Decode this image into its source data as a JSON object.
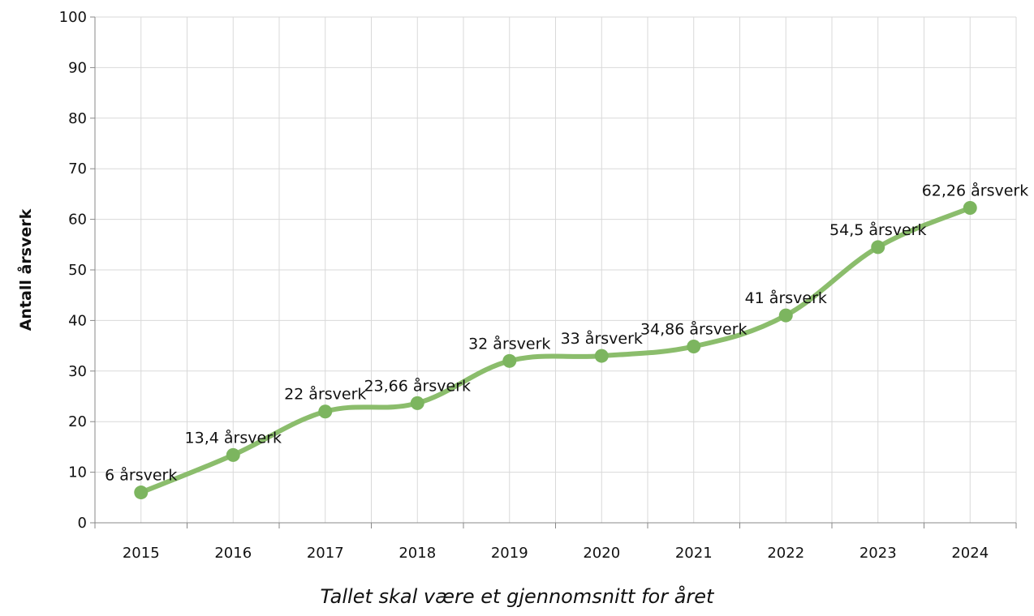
{
  "chart_data": {
    "type": "line",
    "categories": [
      "2015",
      "2016",
      "2017",
      "2018",
      "2019",
      "2020",
      "2021",
      "2022",
      "2023",
      "2024"
    ],
    "series": [
      {
        "values": [
          6,
          13.4,
          22,
          23.66,
          32,
          33,
          34.86,
          41,
          54.5,
          62.26
        ],
        "labels": [
          "6 årsverk",
          "13,4 årsverk",
          "22 årsverk",
          "23,66 årsverk",
          "32 årsverk",
          "33 årsverk",
          "34,86 årsverk",
          "41 årsverk",
          "54,5 årsverk",
          "62,26 årsverk"
        ],
        "color": "#8bbd6c"
      }
    ],
    "xlabel": "Tallet skal være et gjennomsnitt for året",
    "ylabel": "Antall årsverk",
    "ylim": [
      0,
      100
    ],
    "yticks": [
      "0",
      "10",
      "20",
      "30",
      "40",
      "50",
      "60",
      "70",
      "80",
      "90",
      "100"
    ],
    "grid": true,
    "smooth": true
  },
  "colors": {
    "line": "#8bbd6c",
    "marker": "#7cb55f",
    "grid": "#d9d9d9",
    "axis": "#888888"
  }
}
